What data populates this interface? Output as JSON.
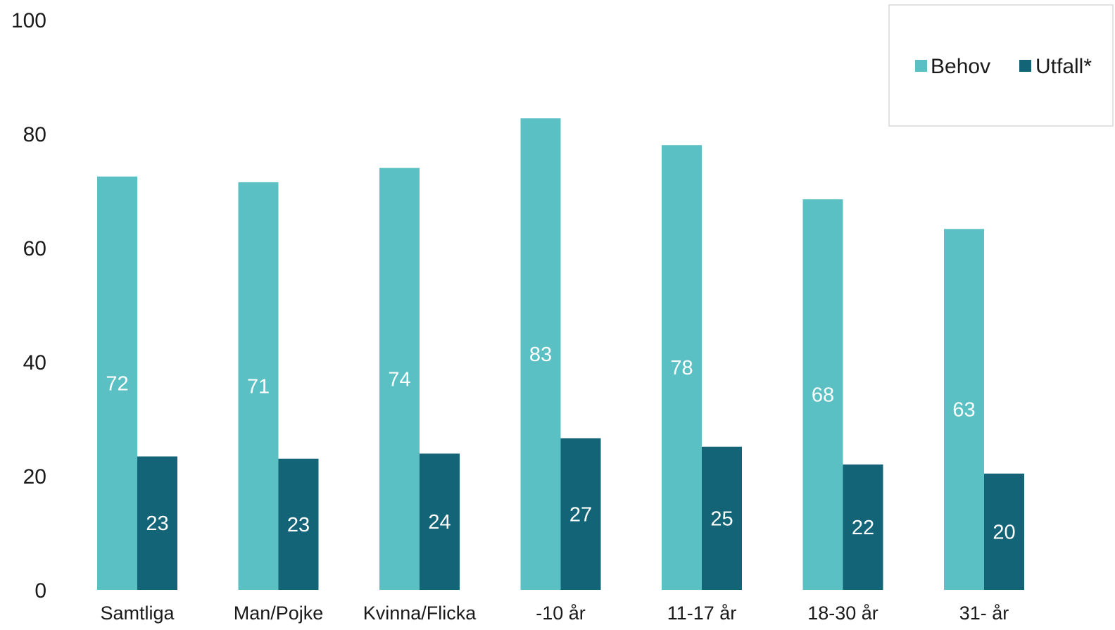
{
  "chart_data": {
    "type": "bar",
    "title": "",
    "xlabel": "",
    "ylabel": "",
    "ylim": [
      0,
      100
    ],
    "yticks": [
      "0",
      "20",
      "40",
      "60",
      "80",
      "100"
    ],
    "grid": false,
    "legend_position": "top-right",
    "categories": [
      "Samtliga",
      "Man/Pojke",
      "Kvinna/Flicka",
      "-10 år",
      "11-17 år",
      "18-30 år",
      "31- år"
    ],
    "series": [
      {
        "name": "Behov",
        "color": "#5bc0c4",
        "values": [
          72.5,
          71.5,
          74,
          82.7,
          78,
          68.5,
          63.3
        ],
        "labels": [
          "72",
          "71",
          "74",
          "83",
          "78",
          "68",
          "63"
        ]
      },
      {
        "name": "Utfall*",
        "color": "#146477",
        "values": [
          23.4,
          23,
          23.9,
          26.6,
          25.1,
          22,
          20.4
        ],
        "labels": [
          "23",
          "23",
          "24",
          "27",
          "25",
          "22",
          "20"
        ]
      }
    ]
  }
}
